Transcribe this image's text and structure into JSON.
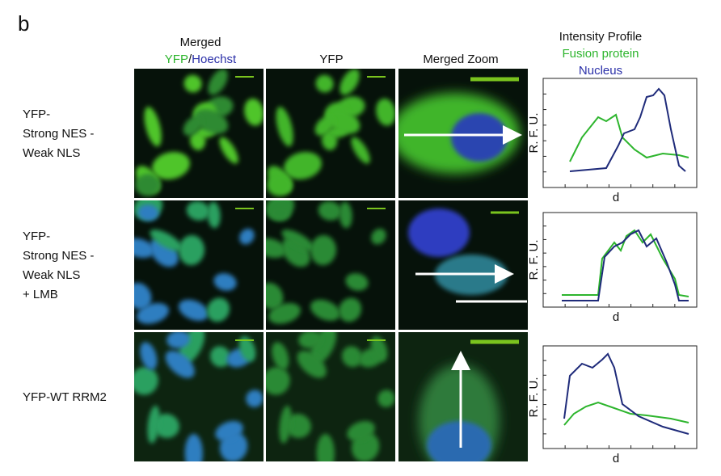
{
  "figure": {
    "panel_label": "b",
    "columns": {
      "merged": {
        "title": "Merged",
        "yfp": "YFP",
        "slash": "/",
        "hoechst": "Hoechst"
      },
      "yfp": "YFP",
      "zoom": "Merged Zoom",
      "profile": {
        "title": "Intensity Profile",
        "fusion": "Fusion protein",
        "nucleus": "Nucleus"
      }
    },
    "rows": [
      {
        "label_lines": [
          "YFP-",
          "Strong  NES -",
          "Weak NLS"
        ]
      },
      {
        "label_lines": [
          "YFP-",
          "Strong  NES -",
          "Weak NLS",
          "+ LMB"
        ]
      },
      {
        "label_lines": [
          "YFP-WT RRM2"
        ]
      }
    ],
    "plot": {
      "y_label": "R. F. U.",
      "x_label": "d"
    }
  }
}
